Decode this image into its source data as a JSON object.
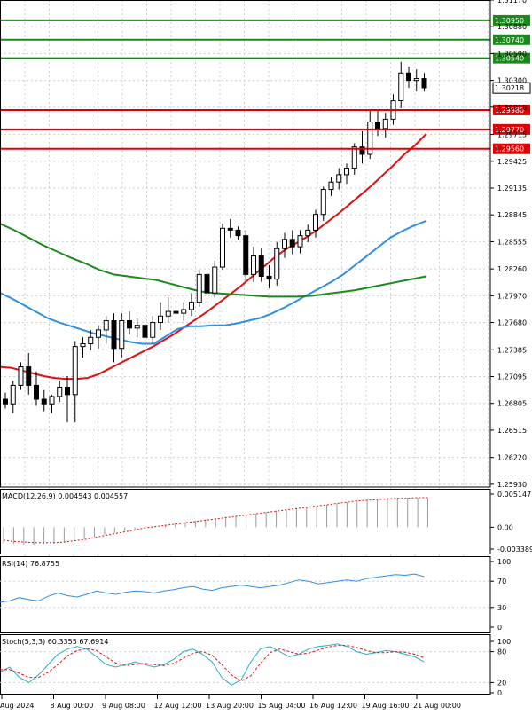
{
  "chart_data": {
    "type": "candlestick",
    "symbol_hint": "GBPUSD H4",
    "price_axis": {
      "min": 1.259,
      "max": 1.3117,
      "ticks": [
        "1.31170",
        "1.30880",
        "1.30590",
        "1.30300",
        "1.30010",
        "1.29715",
        "1.29425",
        "1.29135",
        "1.28845",
        "1.28555",
        "1.28260",
        "1.27970",
        "1.27680",
        "1.27385",
        "1.27095",
        "1.26805",
        "1.26515",
        "1.26220",
        "1.25930"
      ]
    },
    "time_axis": {
      "labels": [
        "Aug 2024",
        "8 Aug 00:00",
        "9 Aug 08:00",
        "12 Aug 12:00",
        "13 Aug 20:00",
        "15 Aug 04:00",
        "16 Aug 12:00",
        "19 Aug 16:00",
        "21 Aug 00:00"
      ]
    },
    "current_price": "1.30218",
    "levels": [
      {
        "label": "1.30950",
        "value": 1.3095,
        "color": "#1a8a1a"
      },
      {
        "label": "1.30740",
        "value": 1.3074,
        "color": "#1a8a1a"
      },
      {
        "label": "1.30540",
        "value": 1.3054,
        "color": "#1a8a1a"
      },
      {
        "label": "1.29980",
        "value": 1.2998,
        "color": "#e00000"
      },
      {
        "label": "1.29770",
        "value": 1.2977,
        "color": "#e00000"
      },
      {
        "label": "1.29560",
        "value": 1.2956,
        "color": "#e00000"
      }
    ],
    "candles": [
      [
        1.2685,
        1.2692,
        1.2675,
        1.268
      ],
      [
        1.268,
        1.2705,
        1.267,
        1.27
      ],
      [
        1.27,
        1.2725,
        1.2695,
        1.272
      ],
      [
        1.272,
        1.2735,
        1.269,
        1.27
      ],
      [
        1.27,
        1.2715,
        1.2678,
        1.2685
      ],
      [
        1.2685,
        1.2695,
        1.2672,
        1.268
      ],
      [
        1.268,
        1.269,
        1.267,
        1.2688
      ],
      [
        1.2688,
        1.2705,
        1.2682,
        1.2698
      ],
      [
        1.2698,
        1.271,
        1.266,
        1.269
      ],
      [
        1.269,
        1.2748,
        1.266,
        1.2742
      ],
      [
        1.2742,
        1.2752,
        1.273,
        1.2745
      ],
      [
        1.2745,
        1.276,
        1.2738,
        1.2752
      ],
      [
        1.2752,
        1.2765,
        1.274,
        1.276
      ],
      [
        1.276,
        1.2775,
        1.2745,
        1.277
      ],
      [
        1.277,
        1.2778,
        1.2725,
        1.274
      ],
      [
        1.274,
        1.2778,
        1.273,
        1.277
      ],
      [
        1.277,
        1.278,
        1.2755,
        1.2762
      ],
      [
        1.2762,
        1.2772,
        1.2752,
        1.2765
      ],
      [
        1.2765,
        1.2772,
        1.2745,
        1.2752
      ],
      [
        1.2752,
        1.2775,
        1.2745,
        1.2768
      ],
      [
        1.2768,
        1.279,
        1.276,
        1.2775
      ],
      [
        1.2775,
        1.2795,
        1.2768,
        1.278
      ],
      [
        1.278,
        1.2792,
        1.2772,
        1.2778
      ],
      [
        1.2778,
        1.279,
        1.277,
        1.2782
      ],
      [
        1.2782,
        1.28,
        1.2775,
        1.279
      ],
      [
        1.279,
        1.2825,
        1.2785,
        1.282
      ],
      [
        1.282,
        1.2832,
        1.279,
        1.28
      ],
      [
        1.28,
        1.2835,
        1.2795,
        1.2828
      ],
      [
        1.2828,
        1.2875,
        1.2825,
        1.287
      ],
      [
        1.287,
        1.288,
        1.286,
        1.2868
      ],
      [
        1.2868,
        1.2872,
        1.2858,
        1.2862
      ],
      [
        1.2862,
        1.2868,
        1.2812,
        1.282
      ],
      [
        1.282,
        1.285,
        1.2812,
        1.284
      ],
      [
        1.284,
        1.2848,
        1.2812,
        1.2818
      ],
      [
        1.2818,
        1.283,
        1.2805,
        1.2815
      ],
      [
        1.2815,
        1.2855,
        1.2808,
        1.2848
      ],
      [
        1.2848,
        1.2865,
        1.2838,
        1.2858
      ],
      [
        1.2858,
        1.2868,
        1.2842,
        1.285
      ],
      [
        1.285,
        1.2868,
        1.2843,
        1.2862
      ],
      [
        1.2862,
        1.2874,
        1.2855,
        1.2868
      ],
      [
        1.2868,
        1.289,
        1.286,
        1.2885
      ],
      [
        1.2885,
        1.2915,
        1.2878,
        1.2912
      ],
      [
        1.2912,
        1.2925,
        1.2905,
        1.292
      ],
      [
        1.292,
        1.2935,
        1.2912,
        1.2928
      ],
      [
        1.2928,
        1.294,
        1.2918,
        1.2935
      ],
      [
        1.2935,
        1.2962,
        1.2928,
        1.2958
      ],
      [
        1.2958,
        1.2975,
        1.294,
        1.295
      ],
      [
        1.295,
        1.2998,
        1.2945,
        1.2985
      ],
      [
        1.2985,
        1.2998,
        1.297,
        1.2978
      ],
      [
        1.2978,
        1.2995,
        1.2968,
        1.2988
      ],
      [
        1.2988,
        1.3015,
        1.2982,
        1.3008
      ],
      [
        1.3008,
        1.305,
        1.3,
        1.3038
      ],
      [
        1.3038,
        1.3045,
        1.3022,
        1.303
      ],
      [
        1.303,
        1.3042,
        1.3018,
        1.3032
      ],
      [
        1.3032,
        1.3038,
        1.3018,
        1.3022
      ]
    ],
    "moving_averages": [
      {
        "name": "MA red",
        "color": "#e01010",
        "values": [
          1.272,
          1.2719,
          1.2716,
          1.2713,
          1.271,
          1.2708,
          1.2707,
          1.2707,
          1.2708,
          1.2712,
          1.2718,
          1.2724,
          1.273,
          1.2736,
          1.2742,
          1.2749,
          1.2756,
          1.2764,
          1.2772,
          1.278,
          1.2789,
          1.2798,
          1.2807,
          1.2817,
          1.2827,
          1.2837,
          1.2846,
          1.2853,
          1.286,
          1.2868,
          1.2877,
          1.2886,
          1.2896,
          1.2906,
          1.2916,
          1.2927,
          1.2938,
          1.295,
          1.296,
          1.2972
        ]
      },
      {
        "name": "MA blue",
        "color": "#2f8fe0",
        "values": [
          1.28,
          1.2794,
          1.2787,
          1.278,
          1.2773,
          1.2768,
          1.2764,
          1.276,
          1.2756,
          1.2753,
          1.275,
          1.2747,
          1.2745,
          1.2745,
          1.2753,
          1.2761,
          1.2764,
          1.2764,
          1.2765,
          1.2765,
          1.2767,
          1.277,
          1.2773,
          1.2778,
          1.2784,
          1.2791,
          1.2798,
          1.2805,
          1.2812,
          1.282,
          1.283,
          1.284,
          1.285,
          1.286,
          1.2867,
          1.2873,
          1.2878
        ]
      },
      {
        "name": "MA green",
        "color": "#1a8a1a",
        "values": [
          1.2875,
          1.2868,
          1.286,
          1.2852,
          1.2845,
          1.2838,
          1.2832,
          1.2825,
          1.282,
          1.2818,
          1.2816,
          1.2814,
          1.281,
          1.2806,
          1.2802,
          1.28,
          1.2799,
          1.2798,
          1.2797,
          1.2796,
          1.2796,
          1.2796,
          1.2797,
          1.2799,
          1.2801,
          1.2803,
          1.2806,
          1.2809,
          1.2812,
          1.2815,
          1.2818
        ]
      }
    ],
    "macd": {
      "label": "MACD(12,26,9) 0.004543 0.004557",
      "ticks": [
        "0.005147",
        "0.00",
        "-0.003389"
      ],
      "min": -0.003389,
      "max": 0.005147,
      "histogram": [
        -0.0025,
        -0.0026,
        -0.0027,
        -0.0027,
        -0.0026,
        -0.0025,
        -0.0023,
        -0.0021,
        -0.0018,
        -0.0015,
        -0.0012,
        -0.0009,
        -0.0006,
        -0.0003,
        0.0,
        0.0002,
        0.0004,
        0.0006,
        0.0008,
        0.001,
        0.0012,
        0.0014,
        0.0016,
        0.0018,
        0.002,
        0.0022,
        0.0024,
        0.0026,
        0.0027,
        0.0029,
        0.0031,
        0.0033,
        0.0035,
        0.0037,
        0.0039,
        0.0041,
        0.0043,
        0.0044,
        0.0045,
        0.0046,
        0.0046,
        0.0046,
        0.0045
      ],
      "signal": [
        -0.002,
        -0.0022,
        -0.0023,
        -0.0024,
        -0.0024,
        -0.0024,
        -0.0023,
        -0.0021,
        -0.0019,
        -0.0016,
        -0.0013,
        -0.001,
        -0.0007,
        -0.0004,
        -0.0001,
        0.0001,
        0.0003,
        0.0005,
        0.0007,
        0.0009,
        0.0011,
        0.0013,
        0.0015,
        0.0017,
        0.0019,
        0.0021,
        0.0023,
        0.0025,
        0.0027,
        0.0029,
        0.0031,
        0.0033,
        0.0035,
        0.0037,
        0.0039,
        0.0041,
        0.0042,
        0.0043,
        0.0044,
        0.0045,
        0.0045,
        0.0046,
        0.0046
      ]
    },
    "rsi": {
      "label": "RSI(14) 76.8755",
      "ticks": [
        "100",
        "70",
        "30",
        "0"
      ],
      "values": [
        38,
        40,
        45,
        42,
        40,
        47,
        52,
        48,
        46,
        50,
        55,
        52,
        50,
        53,
        55,
        54,
        52,
        55,
        57,
        60,
        62,
        58,
        56,
        60,
        62,
        64,
        62,
        60,
        62,
        64,
        68,
        72,
        70,
        66,
        68,
        70,
        72,
        70,
        74,
        76,
        78,
        80,
        79,
        81,
        77
      ]
    },
    "stoch": {
      "label": "Stoch(5,3,3) 60.3355 67.6914",
      "ticks": [
        "100",
        "80",
        "20",
        "0"
      ],
      "k": [
        40,
        50,
        30,
        20,
        35,
        55,
        75,
        85,
        90,
        85,
        70,
        55,
        50,
        55,
        60,
        55,
        50,
        55,
        65,
        80,
        85,
        75,
        60,
        30,
        15,
        25,
        60,
        85,
        90,
        80,
        70,
        75,
        85,
        90,
        92,
        95,
        90,
        80,
        75,
        78,
        82,
        80,
        75,
        70,
        60
      ],
      "d": [
        45,
        45,
        38,
        30,
        30,
        40,
        55,
        72,
        82,
        86,
        82,
        70,
        58,
        53,
        55,
        57,
        55,
        53,
        57,
        67,
        77,
        80,
        73,
        55,
        35,
        23,
        33,
        57,
        78,
        85,
        80,
        75,
        77,
        83,
        89,
        92,
        92,
        88,
        82,
        78,
        78,
        80,
        79,
        75,
        68
      ]
    }
  }
}
